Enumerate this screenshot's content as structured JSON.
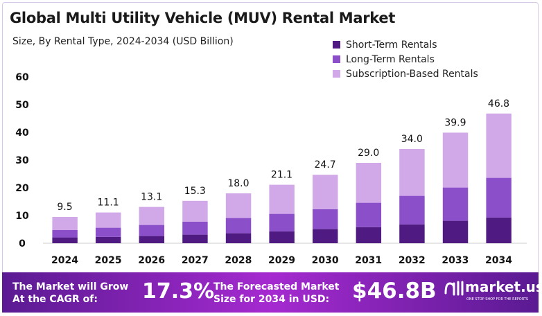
{
  "chart_data": {
    "type": "bar",
    "stacked": true,
    "title": "Global Multi Utility Vehicle (MUV) Rental Market",
    "subtitle": "Size, By Rental Type, 2024-2034 (USD Billion)",
    "categories": [
      "2024",
      "2025",
      "2026",
      "2027",
      "2028",
      "2029",
      "2030",
      "2031",
      "2032",
      "2033",
      "2034"
    ],
    "series": [
      {
        "name": "Short-Term Rentals",
        "color": "#4f1a82",
        "values": [
          2.1,
          2.3,
          2.6,
          3.1,
          3.6,
          4.3,
          5.1,
          5.8,
          6.8,
          8.1,
          9.3
        ]
      },
      {
        "name": "Long-Term Rentals",
        "color": "#8a4fc9",
        "values": [
          2.65,
          3.3,
          4.0,
          4.7,
          5.5,
          6.3,
          7.2,
          8.8,
          10.3,
          12.0,
          14.3
        ]
      },
      {
        "name": "Subscription-Based Rentals",
        "color": "#d1a8e8",
        "values": [
          4.75,
          5.5,
          6.5,
          7.5,
          8.9,
          10.5,
          12.4,
          14.4,
          16.9,
          19.8,
          23.2
        ]
      }
    ],
    "totals": [
      "9.5",
      "11.1",
      "13.1",
      "15.3",
      "18.0",
      "21.1",
      "24.7",
      "29.0",
      "34.0",
      "39.9",
      "46.8"
    ],
    "yticks": [
      "0",
      "10",
      "20",
      "30",
      "40",
      "50",
      "60"
    ],
    "ylim": [
      0,
      60
    ],
    "grid": false,
    "legend": "top-right"
  },
  "banner": {
    "cagr_text": "The Market will Grow At the CAGR of:",
    "cagr": "17.3%",
    "forecast_text": "The Forecasted Market Size for 2034 in USD:",
    "forecast": "$46.8B",
    "logo": "market.us",
    "logo_tag": "ONE STOP SHOP FOR THE REPORTS"
  }
}
